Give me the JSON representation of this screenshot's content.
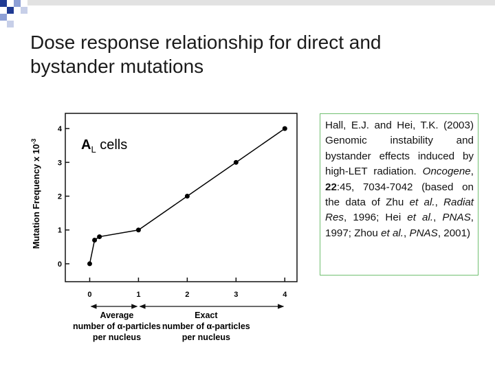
{
  "title_lines": [
    "Dose response relationship for direct and",
    "bystander mutations"
  ],
  "chart_data": {
    "type": "line",
    "x": [
      0,
      0.1,
      0.2,
      1,
      2,
      3,
      4
    ],
    "y": [
      0,
      0.7,
      0.8,
      1,
      2,
      3,
      4
    ],
    "color": "#000000",
    "xlim": [
      -0.5,
      4.25
    ],
    "ylim": [
      -0.53,
      4.45
    ],
    "xticks": [
      0,
      1,
      2,
      3,
      4
    ],
    "yticks": [
      0,
      1,
      2,
      3,
      4
    ],
    "y_label": "Mutation Frequency x 10",
    "y_label_exponent": "-3",
    "annotation": {
      "main": "A",
      "subscript": "L",
      "rest": " cells"
    },
    "x_groups": [
      {
        "lines": [
          "Average",
          "number of α-particles",
          "per nucleus"
        ],
        "from": 0,
        "to": 1
      },
      {
        "lines": [
          "Exact",
          "number of α-particles",
          "per nucleus"
        ],
        "from": 1,
        "to": 4
      }
    ]
  },
  "citation": [
    {
      "text": "Hall, E.J. and Hei, T.K. (2003) Genomic instability and bystander effects induced by high-LET radiation. ",
      "style": "normal"
    },
    {
      "text": "Oncogene",
      "style": "italic"
    },
    {
      "text": ", ",
      "style": "normal"
    },
    {
      "text": "22",
      "style": "bold"
    },
    {
      "text": ":45, 7034-7042 (based on the data of Zhu ",
      "style": "normal"
    },
    {
      "text": "et al.",
      "style": "italic"
    },
    {
      "text": ", ",
      "style": "normal"
    },
    {
      "text": "Radiat Res",
      "style": "italic"
    },
    {
      "text": ", 1996; Hei ",
      "style": "normal"
    },
    {
      "text": "et al.",
      "style": "italic"
    },
    {
      "text": ", ",
      "style": "normal"
    },
    {
      "text": "PNAS",
      "style": "italic"
    },
    {
      "text": ", 1997; Zhou ",
      "style": "normal"
    },
    {
      "text": "et al.",
      "style": "italic"
    },
    {
      "text": ", ",
      "style": "normal"
    },
    {
      "text": "PNAS",
      "style": "italic"
    },
    {
      "text": ", 2001)",
      "style": "normal"
    }
  ]
}
